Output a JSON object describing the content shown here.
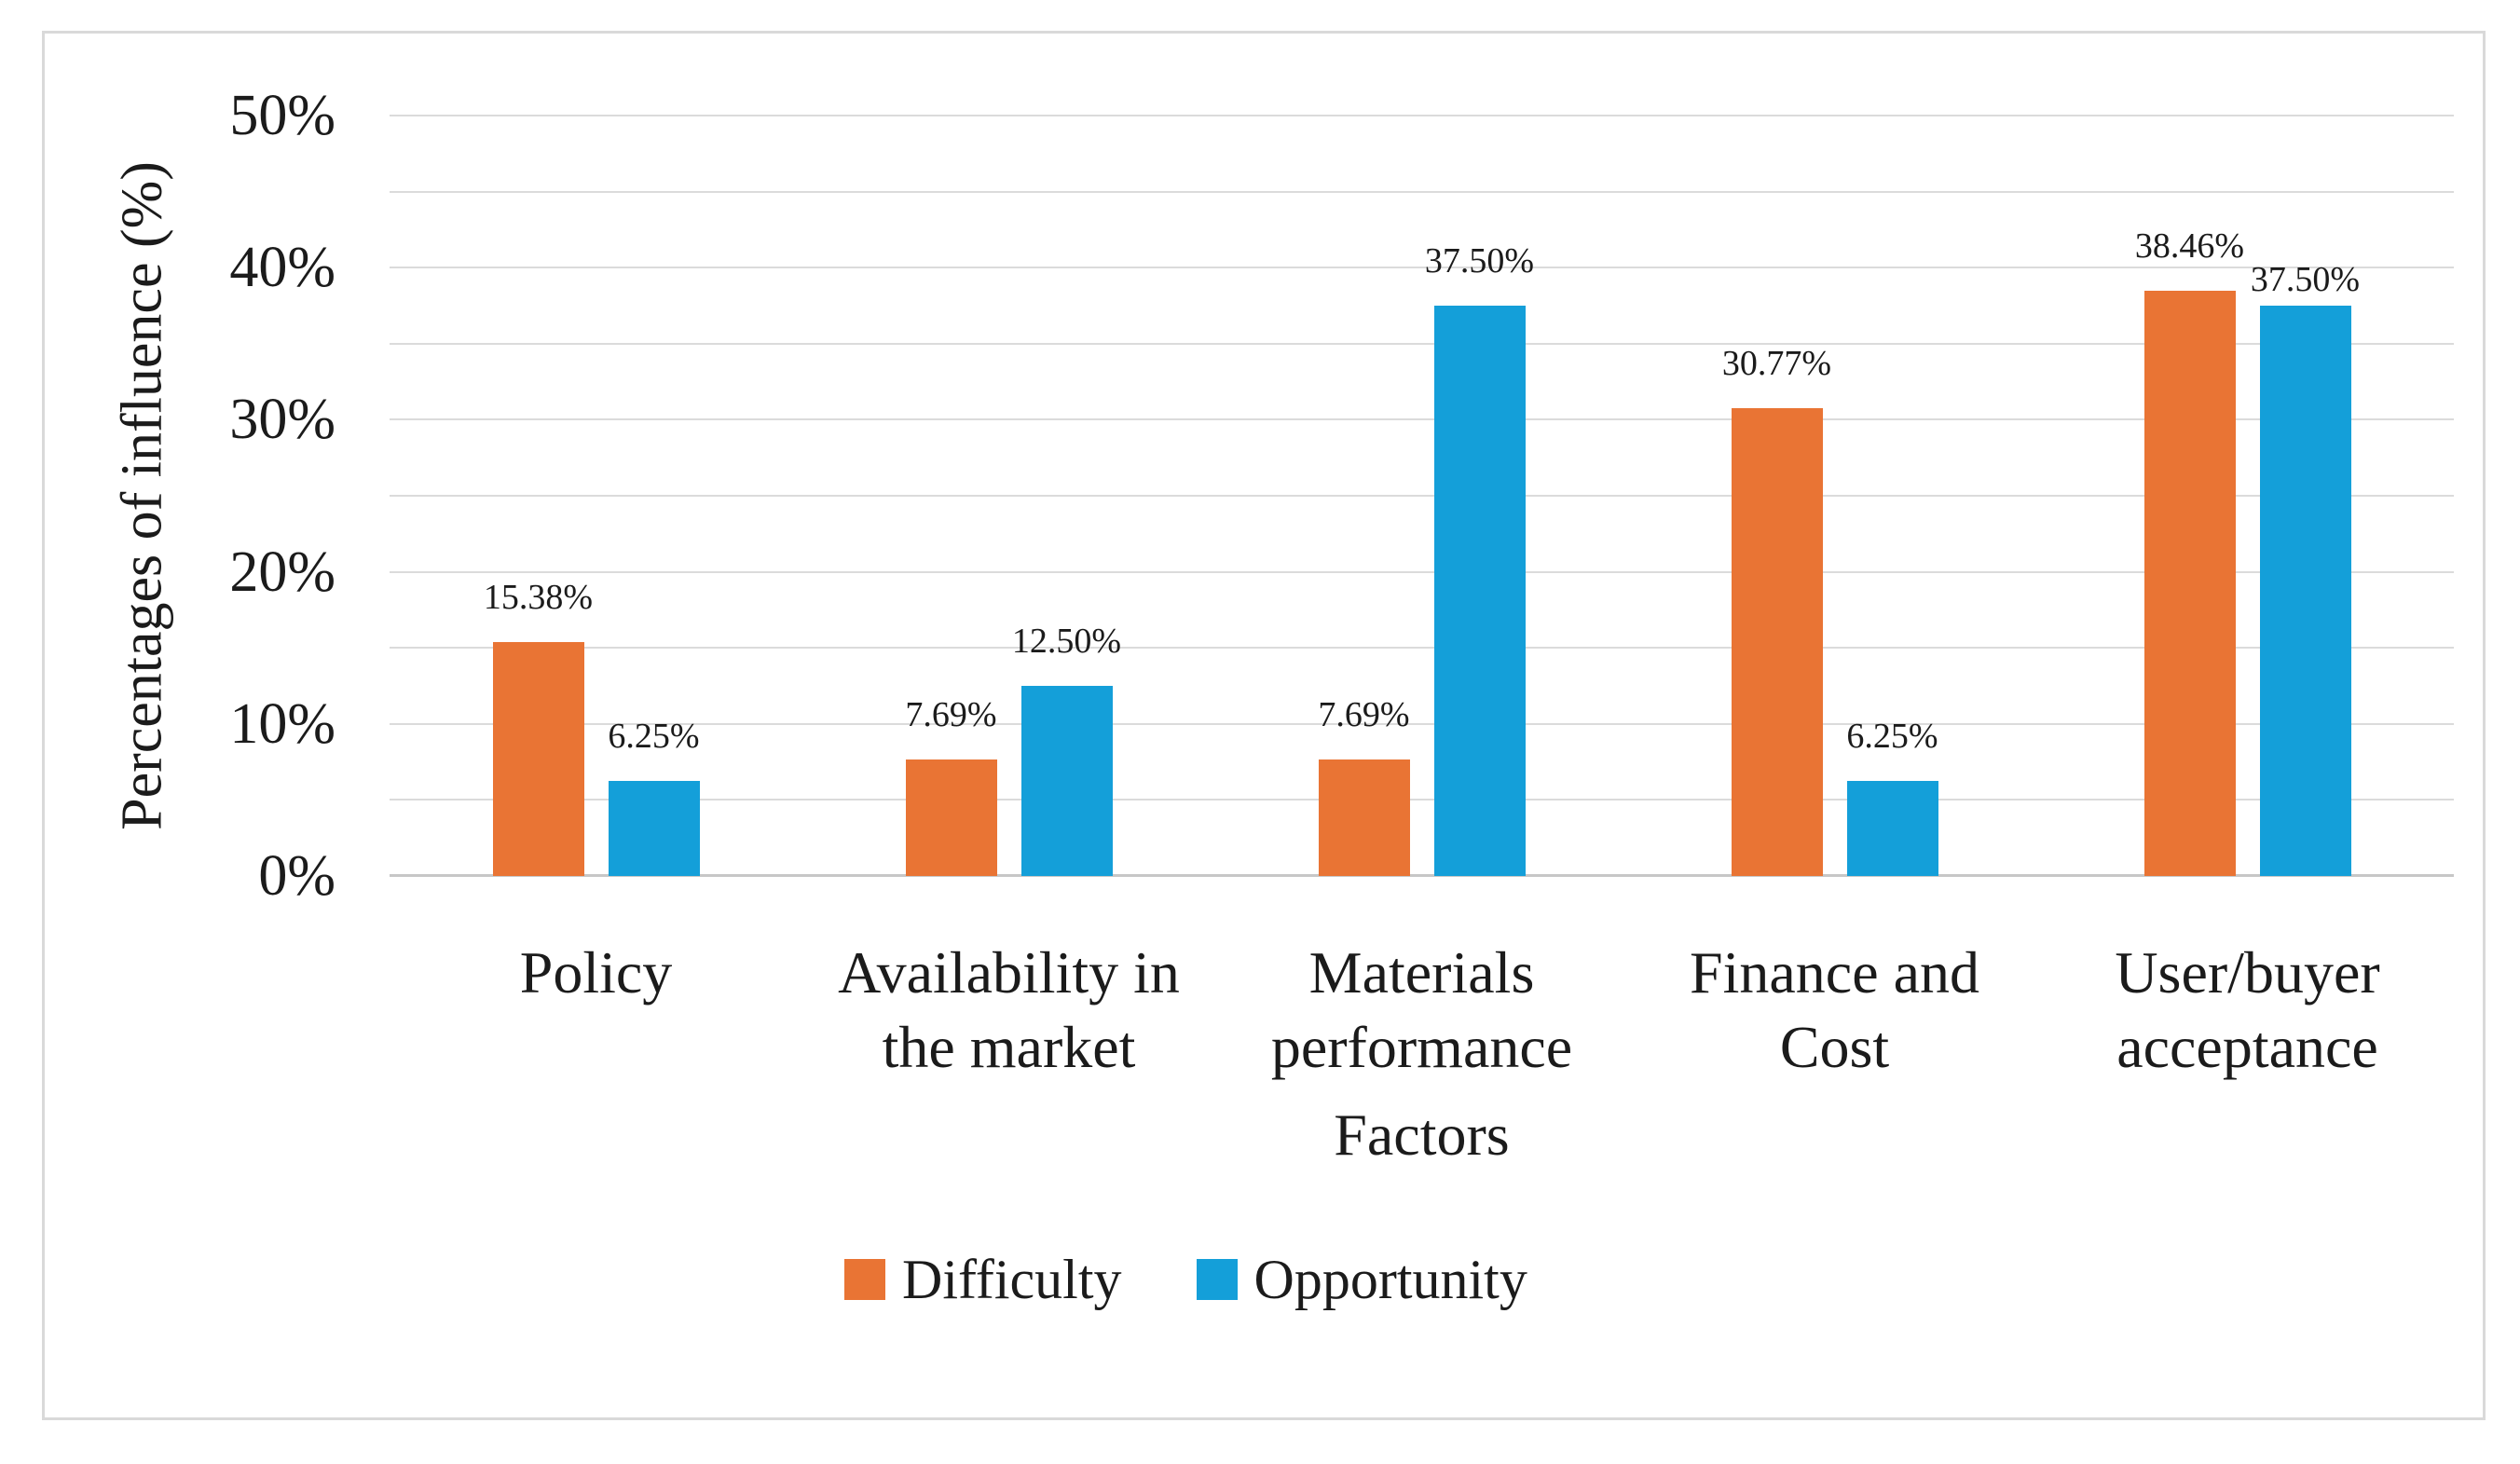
{
  "figure": {
    "background": "#ffffff",
    "frame_border_color": "#d9d9d9"
  },
  "colors": {
    "gridline": "#dbdbdb",
    "axis_baseline": "#c7c7c7",
    "text": "#1b1b1b",
    "difficulty_orange": "#e97434",
    "opportunity_blue": "#149fd9"
  },
  "chart_data": {
    "type": "bar",
    "title": "",
    "xlabel": "Factors",
    "ylabel": "Percentages of influence (%)",
    "categories": [
      "Policy",
      "Availability in the market",
      "Materials performance",
      "Finance and Cost",
      "User/buyer acceptance"
    ],
    "category_lines": [
      [
        "Policy"
      ],
      [
        "Availability in",
        "the market"
      ],
      [
        "Materials",
        "performance"
      ],
      [
        "Finance and",
        "Cost"
      ],
      [
        "User/buyer",
        "acceptance"
      ]
    ],
    "series": [
      {
        "name": "Difficulty",
        "color": "#e97434",
        "values": [
          15.38,
          7.69,
          7.69,
          30.77,
          38.46
        ],
        "labels": [
          "15.38%",
          "7.69%",
          "7.69%",
          "30.77%",
          "38.46%"
        ]
      },
      {
        "name": "Opportunity",
        "color": "#149fd9",
        "values": [
          6.25,
          12.5,
          37.5,
          6.25,
          37.5
        ],
        "labels": [
          "6.25%",
          "12.50%",
          "37.50%",
          "6.25%",
          "37.50%"
        ]
      }
    ],
    "ylim": [
      0,
      50
    ],
    "y_tick_step": 10,
    "y_tick_labels": [
      "0%",
      "10%",
      "20%",
      "30%",
      "40%",
      "50%"
    ],
    "gridline_step": 5,
    "grid": true,
    "legend_position": "bottom"
  }
}
